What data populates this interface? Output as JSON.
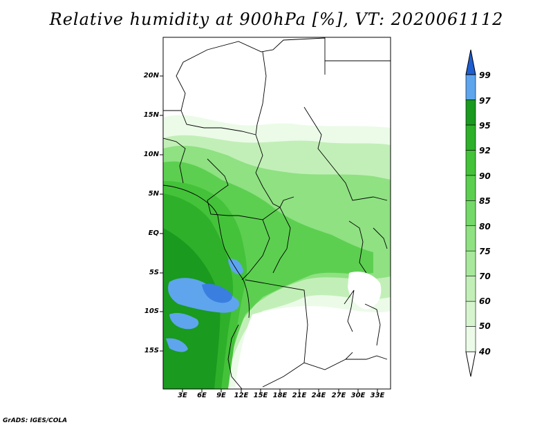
{
  "title": "Relative humidity at 900hPa [%], VT: 2020061112",
  "credit": "GrADS: IGES/COLA",
  "map": {
    "lat_ticks": [
      "20N",
      "15N",
      "10N",
      "5N",
      "EQ",
      "5S",
      "10S",
      "15S"
    ],
    "lon_ticks": [
      "3E",
      "6E",
      "9E",
      "12E",
      "15E",
      "18E",
      "21E",
      "24E",
      "27E",
      "30E",
      "33E"
    ],
    "lat_range": [
      -19.5,
      24.5
    ],
    "lon_range": [
      0,
      35
    ]
  },
  "colorbar": {
    "levels": [
      "40",
      "50",
      "60",
      "70",
      "75",
      "80",
      "85",
      "90",
      "92",
      "95",
      "97",
      "99"
    ],
    "colors": [
      "#ebfbe8",
      "#d6f5cf",
      "#c2efb7",
      "#a8e89c",
      "#8fe182",
      "#74d968",
      "#5ccf50",
      "#44c23a",
      "#2eb02a",
      "#1a9a1e",
      "#5ea5ee",
      "#3a7fe0",
      "#1f5ed0"
    ],
    "lower_cap_color": "#ffffff",
    "upper_cap_color": "#1f5ed0"
  }
}
